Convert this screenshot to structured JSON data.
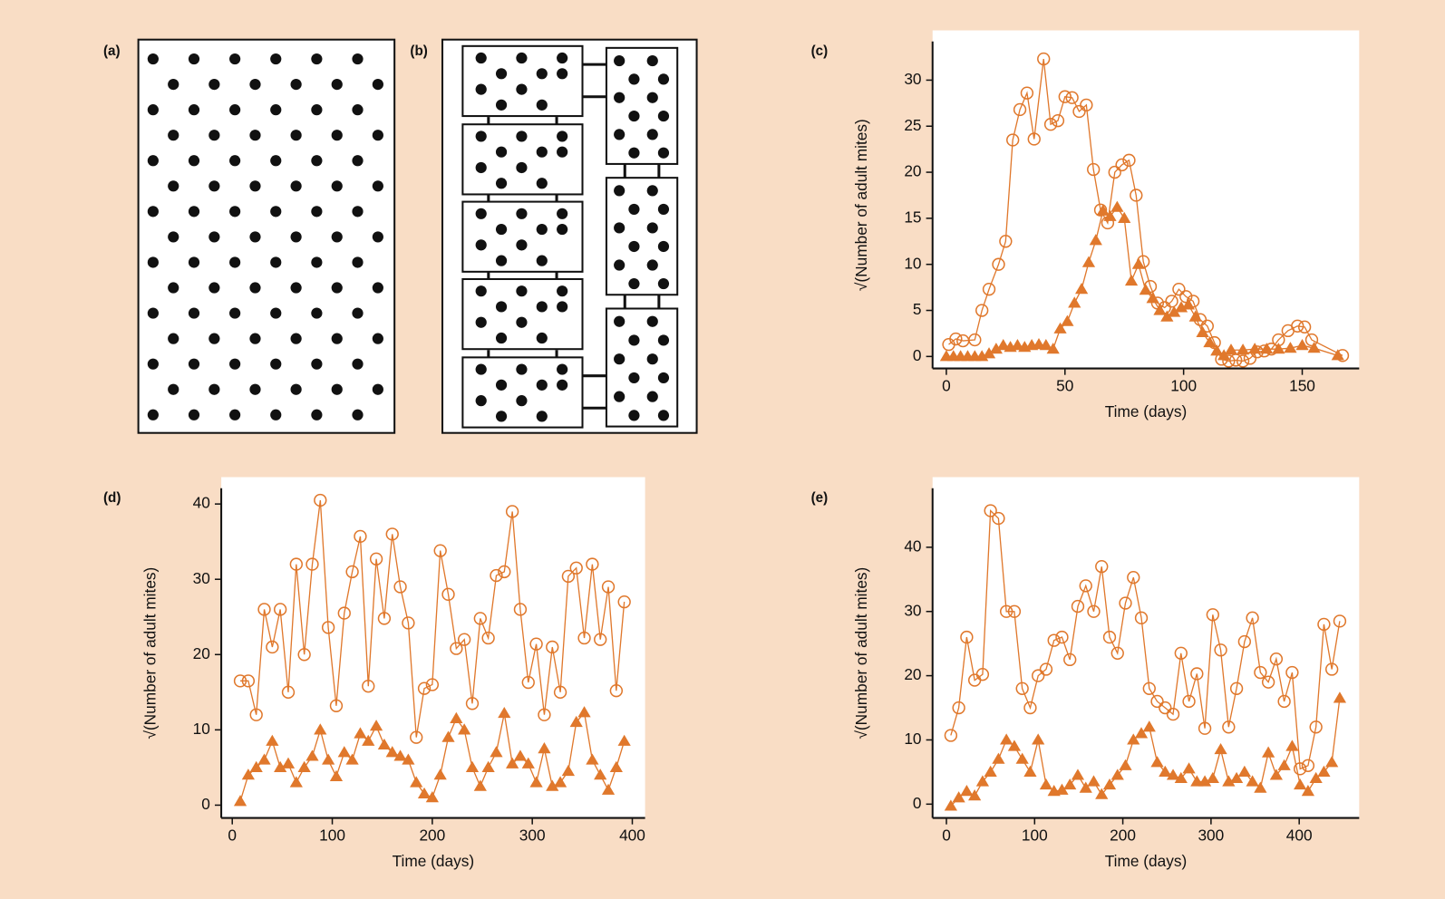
{
  "panels": {
    "a": {
      "label": "(a)"
    },
    "b": {
      "label": "(b)"
    }
  },
  "chart_data": [
    {
      "type": "line",
      "panel_label": "(c)",
      "xlabel": "Time (days)",
      "ylabel": "√(Number of adult mites)",
      "xlim": [
        -5.8,
        174
      ],
      "ylim": [
        -1.3,
        34.2
      ],
      "xticks": [
        0,
        50,
        100,
        150
      ],
      "yticks": [
        0,
        5,
        10,
        15,
        20,
        25,
        30
      ],
      "series": [
        {
          "color": "#e0782c",
          "marker": "circle",
          "x": [
            1,
            4,
            7,
            12,
            15,
            18,
            22,
            25,
            28,
            31,
            34,
            37,
            41,
            44,
            47,
            50,
            53,
            56,
            59,
            62,
            65,
            68,
            71,
            74,
            77,
            80,
            83,
            86,
            89,
            92,
            95,
            98,
            101,
            104,
            107,
            110,
            113,
            116,
            119,
            122,
            125,
            128,
            131,
            134,
            137,
            140,
            144,
            148,
            151,
            154,
            167
          ],
          "values": [
            1.3,
            1.9,
            1.7,
            1.8,
            5.0,
            7.3,
            10.0,
            12.5,
            23.5,
            26.8,
            28.6,
            23.6,
            32.3,
            25.2,
            25.6,
            28.2,
            28.1,
            26.6,
            27.3,
            20.3,
            15.9,
            14.5,
            20.0,
            20.8,
            21.3,
            17.5,
            10.3,
            7.6,
            5.8,
            5.3,
            6.0,
            7.3,
            6.5,
            6.0,
            4.0,
            3.3,
            1.5,
            -0.3,
            -0.5,
            -0.4,
            -0.5,
            -0.2,
            0.5,
            0.6,
            0.8,
            1.8,
            2.8,
            3.3,
            3.2,
            1.8,
            0.1
          ]
        },
        {
          "color": "#e0782c",
          "marker": "triangle",
          "x": [
            0,
            3,
            6,
            9,
            12,
            15,
            18,
            21,
            24,
            27,
            30,
            33,
            36,
            39,
            42,
            45,
            48,
            51,
            54,
            57,
            60,
            63,
            66,
            69,
            72,
            75,
            78,
            81,
            84,
            87,
            90,
            93,
            96,
            99,
            102,
            105,
            108,
            111,
            114,
            117,
            120,
            125,
            130,
            135,
            140,
            145,
            150,
            155,
            165
          ],
          "values": [
            0,
            0,
            0,
            0,
            0,
            0,
            0.3,
            0.8,
            1.2,
            1.0,
            1.2,
            1.0,
            1.2,
            1.3,
            1.2,
            0.8,
            3.0,
            3.8,
            5.8,
            7.3,
            10.2,
            12.6,
            15.8,
            15.2,
            16.2,
            15.0,
            8.2,
            10.0,
            7.2,
            6.3,
            5.0,
            4.3,
            4.8,
            5.3,
            5.6,
            4.3,
            2.6,
            1.5,
            0.6,
            0.1,
            0.7,
            0.7,
            0.8,
            0.8,
            0.8,
            0.9,
            1.2,
            0.9,
            0.1
          ]
        }
      ]
    },
    {
      "type": "line",
      "panel_label": "(d)",
      "xlabel": "Time (days)",
      "ylabel": "√(Number of adult mites)",
      "xlim": [
        -11,
        412.8
      ],
      "ylim": [
        -1.7,
        42.1
      ],
      "xticks": [
        0,
        100,
        200,
        300,
        400
      ],
      "yticks": [
        0,
        10,
        20,
        30,
        40
      ],
      "series": [
        {
          "color": "#e0782c",
          "marker": "circle",
          "x": [
            8,
            16,
            24,
            32,
            40,
            48,
            56,
            64,
            72,
            80,
            88,
            96,
            104,
            112,
            120,
            128,
            136,
            144,
            152,
            160,
            168,
            176,
            184,
            192,
            200,
            208,
            216,
            224,
            232,
            240,
            248,
            256,
            264,
            272,
            280,
            288,
            296,
            304,
            312,
            320,
            328,
            336,
            344,
            352,
            360,
            368,
            376,
            384,
            392
          ],
          "values": [
            16.5,
            16.5,
            12,
            26,
            21,
            26,
            15,
            32,
            20,
            32,
            40.5,
            23.6,
            13.2,
            25.5,
            31,
            35.7,
            15.8,
            32.7,
            24.8,
            36,
            29,
            24.2,
            9,
            15.5,
            16,
            33.8,
            28,
            20.8,
            22,
            13.5,
            24.8,
            22.2,
            30.5,
            31,
            39,
            26,
            16.3,
            21.4,
            12,
            21,
            15,
            30.4,
            31.5,
            22.2,
            32,
            22,
            29,
            15.2,
            27
          ]
        },
        {
          "color": "#e0782c",
          "marker": "triangle",
          "x": [
            8,
            16,
            24,
            32,
            40,
            48,
            56,
            64,
            72,
            80,
            88,
            96,
            104,
            112,
            120,
            128,
            136,
            144,
            152,
            160,
            168,
            176,
            184,
            192,
            200,
            208,
            216,
            224,
            232,
            240,
            248,
            256,
            264,
            272,
            280,
            288,
            296,
            304,
            312,
            320,
            328,
            336,
            344,
            352,
            360,
            368,
            376,
            384,
            392
          ],
          "values": [
            0.5,
            4,
            5,
            6,
            8.5,
            5,
            5.5,
            3,
            5,
            6.5,
            10,
            6,
            3.8,
            7,
            6,
            9.5,
            8.5,
            10.5,
            8,
            7,
            6.5,
            6,
            3,
            1.5,
            1,
            4,
            9,
            11.5,
            10,
            5,
            2.5,
            5,
            7,
            12.2,
            5.5,
            6.5,
            5.5,
            3,
            7.5,
            2.5,
            3,
            4.5,
            11,
            12.3,
            6,
            4,
            2,
            5,
            8.5
          ]
        }
      ]
    },
    {
      "type": "line",
      "panel_label": "(e)",
      "xlabel": "Time (days)",
      "ylabel": "√(Number of adult mites)",
      "xlim": [
        -15.7,
        468
      ],
      "ylim": [
        -2.15,
        49.2
      ],
      "xticks": [
        0,
        100,
        200,
        300,
        400
      ],
      "yticks": [
        0,
        10,
        20,
        30,
        40
      ],
      "series": [
        {
          "color": "#e0782c",
          "marker": "circle",
          "x": [
            5,
            14,
            23,
            32,
            41,
            50,
            59,
            68,
            77,
            86,
            95,
            104,
            113,
            122,
            131,
            140,
            149,
            158,
            167,
            176,
            185,
            194,
            203,
            212,
            221,
            230,
            239,
            248,
            257,
            266,
            275,
            284,
            293,
            302,
            311,
            320,
            329,
            338,
            347,
            356,
            365,
            374,
            383,
            392,
            401,
            410,
            419,
            428,
            437,
            446
          ],
          "values": [
            10.7,
            15,
            26,
            19.3,
            20.2,
            45.7,
            44.5,
            30,
            30,
            18,
            15,
            20,
            21,
            25.5,
            26,
            22.5,
            30.8,
            34,
            30,
            37,
            26,
            23.5,
            31.3,
            35.3,
            29,
            18,
            16,
            15,
            14,
            23.5,
            16,
            20.3,
            11.8,
            29.5,
            24,
            12,
            18,
            25.3,
            29,
            20.5,
            19,
            22.6,
            16,
            20.5,
            5.5,
            6,
            12,
            28,
            21,
            28.5
          ]
        },
        {
          "color": "#e0782c",
          "marker": "triangle",
          "x": [
            5,
            14,
            23,
            32,
            41,
            50,
            59,
            68,
            77,
            86,
            95,
            104,
            113,
            122,
            131,
            140,
            149,
            158,
            167,
            176,
            185,
            194,
            203,
            212,
            221,
            230,
            239,
            248,
            257,
            266,
            275,
            284,
            293,
            302,
            311,
            320,
            329,
            338,
            347,
            356,
            365,
            374,
            383,
            392,
            401,
            410,
            419,
            428,
            437,
            446
          ],
          "values": [
            -0.3,
            1,
            2,
            1.3,
            3.5,
            5,
            7,
            10,
            9,
            7,
            5,
            10,
            3,
            2,
            2.2,
            3,
            4.5,
            2.5,
            3.5,
            1.5,
            3,
            4.5,
            6,
            10,
            11,
            12,
            6.5,
            5,
            4.5,
            4,
            5.5,
            3.5,
            3.5,
            4,
            8.5,
            3.5,
            4,
            5,
            3.5,
            2.5,
            8,
            4.5,
            6,
            9,
            3,
            2,
            4,
            5,
            6.5,
            16.5
          ]
        }
      ]
    }
  ]
}
